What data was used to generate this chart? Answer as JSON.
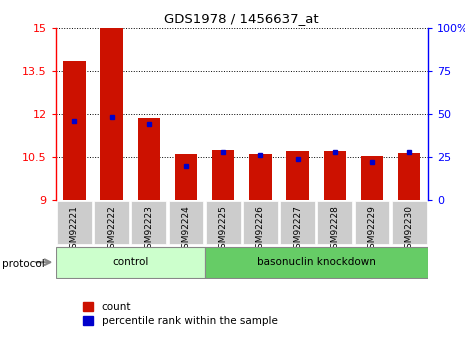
{
  "title": "GDS1978 / 1456637_at",
  "samples": [
    "GSM92221",
    "GSM92222",
    "GSM92223",
    "GSM92224",
    "GSM92225",
    "GSM92226",
    "GSM92227",
    "GSM92228",
    "GSM92229",
    "GSM92230"
  ],
  "red_values": [
    13.85,
    15.0,
    11.85,
    10.6,
    10.75,
    10.6,
    10.72,
    10.72,
    10.52,
    10.65
  ],
  "blue_pct": [
    46,
    48,
    44,
    20,
    28,
    26,
    24,
    28,
    22,
    28
  ],
  "ylim_left": [
    9,
    15
  ],
  "ylim_right": [
    0,
    100
  ],
  "yticks_left": [
    9,
    10.5,
    12,
    13.5,
    15
  ],
  "yticks_right": [
    0,
    25,
    50,
    75,
    100
  ],
  "ytick_labels_left": [
    "9",
    "10.5",
    "12",
    "13.5",
    "15"
  ],
  "ytick_labels_right": [
    "0",
    "25",
    "50",
    "75",
    "100%"
  ],
  "groups": [
    {
      "label": "control",
      "start": 0,
      "end": 4,
      "color": "#ccffcc"
    },
    {
      "label": "basonuclin knockdown",
      "start": 4,
      "end": 10,
      "color": "#66cc66"
    }
  ],
  "protocol_label": "protocol",
  "bar_color_red": "#cc1100",
  "bar_color_blue": "#0000cc",
  "bar_bottom": 9.0,
  "tick_label_bg": "#cccccc",
  "bar_width": 0.6
}
